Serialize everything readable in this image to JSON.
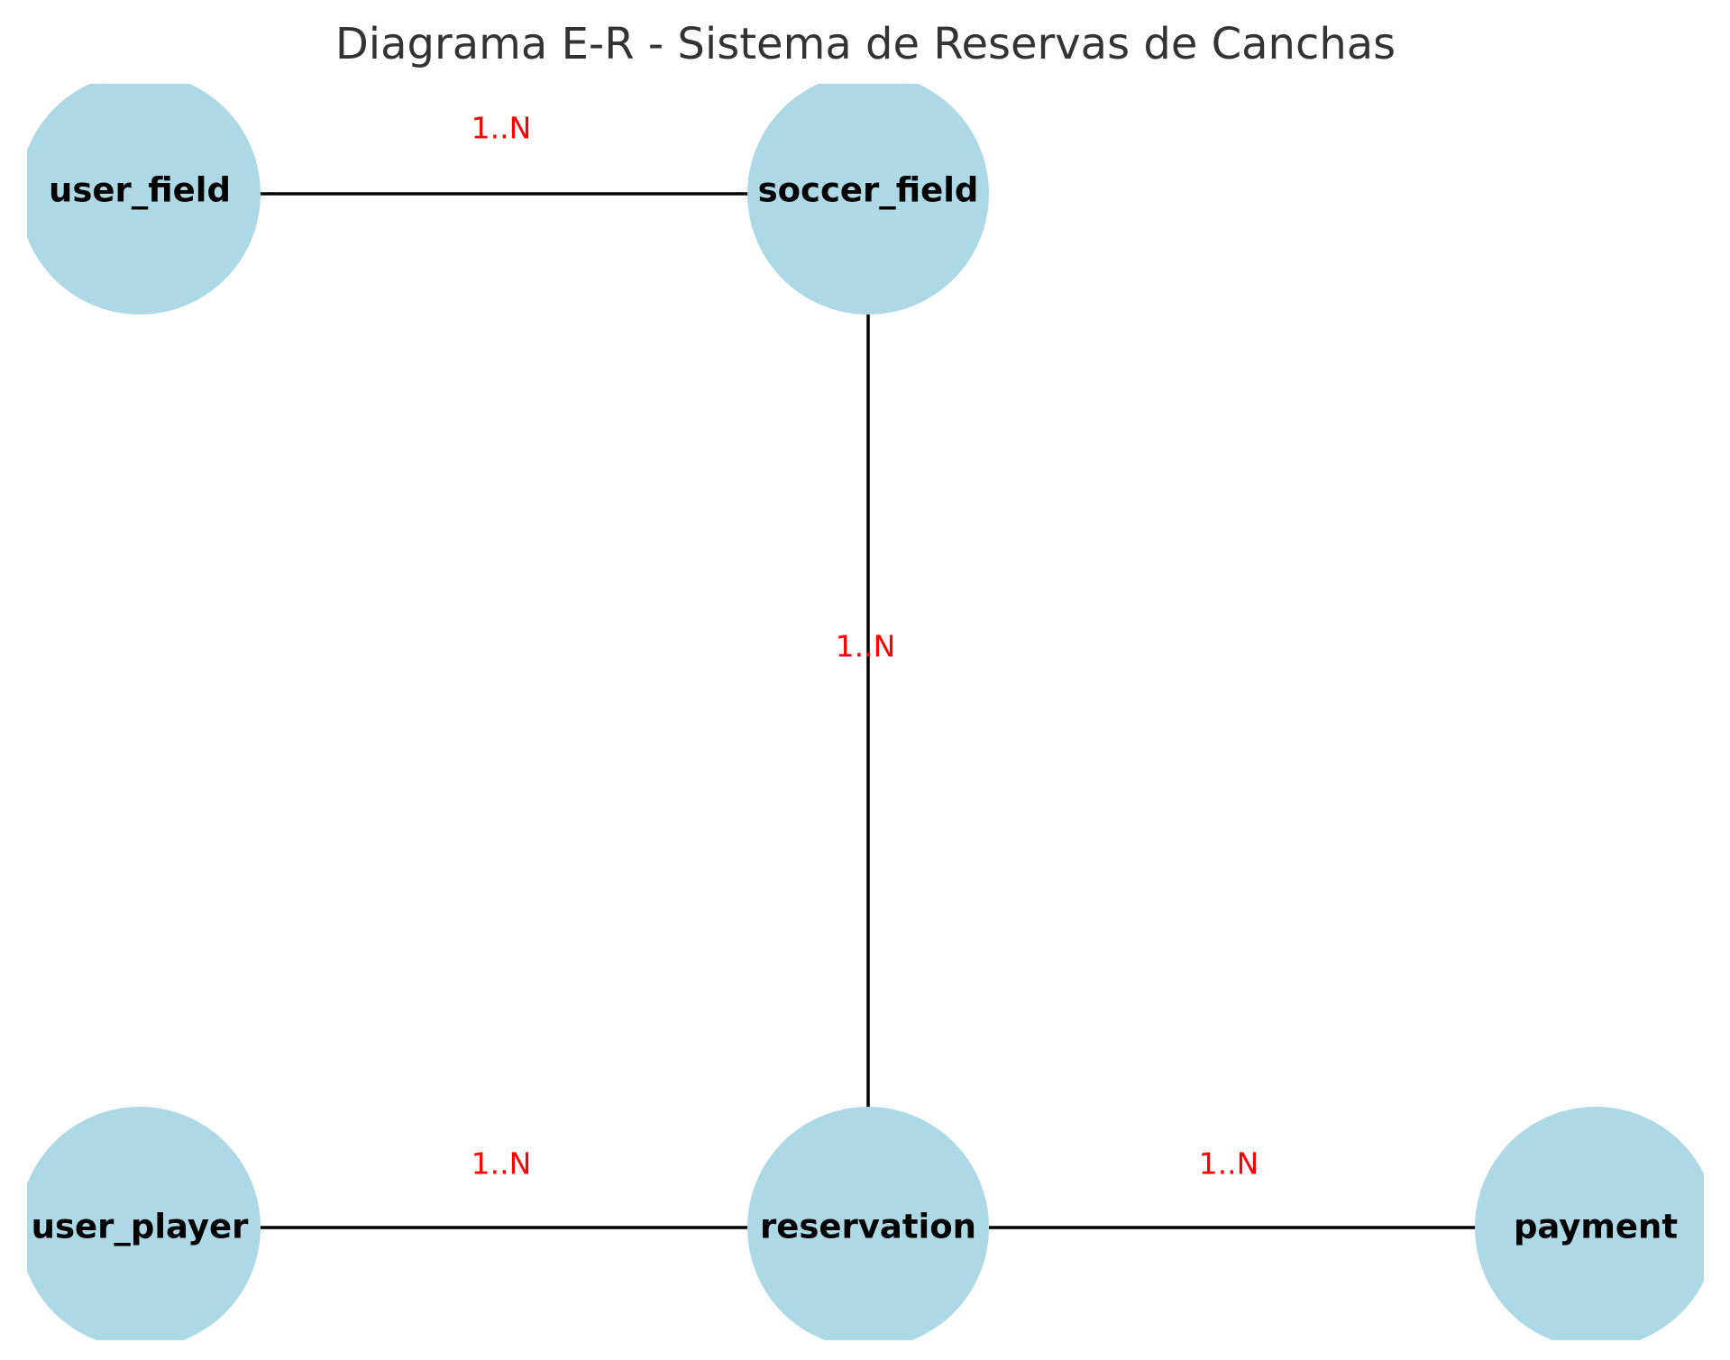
{
  "title": "Diagrama E-R - Sistema de Reservas de Canchas",
  "colors": {
    "node_fill": "#add8e6",
    "edge_stroke": "#000000",
    "edge_label": "#ff0000",
    "title": "#333333"
  },
  "nodes": [
    {
      "id": "user_field",
      "label": "user_field"
    },
    {
      "id": "soccer_field",
      "label": "soccer_field"
    },
    {
      "id": "user_player",
      "label": "user_player"
    },
    {
      "id": "reservation",
      "label": "reservation"
    },
    {
      "id": "payment",
      "label": "payment"
    }
  ],
  "edges": [
    {
      "from": "user_field",
      "to": "soccer_field",
      "label": "1..N"
    },
    {
      "from": "soccer_field",
      "to": "reservation",
      "label": "1..N"
    },
    {
      "from": "user_player",
      "to": "reservation",
      "label": "1..N"
    },
    {
      "from": "reservation",
      "to": "payment",
      "label": "1..N"
    }
  ]
}
